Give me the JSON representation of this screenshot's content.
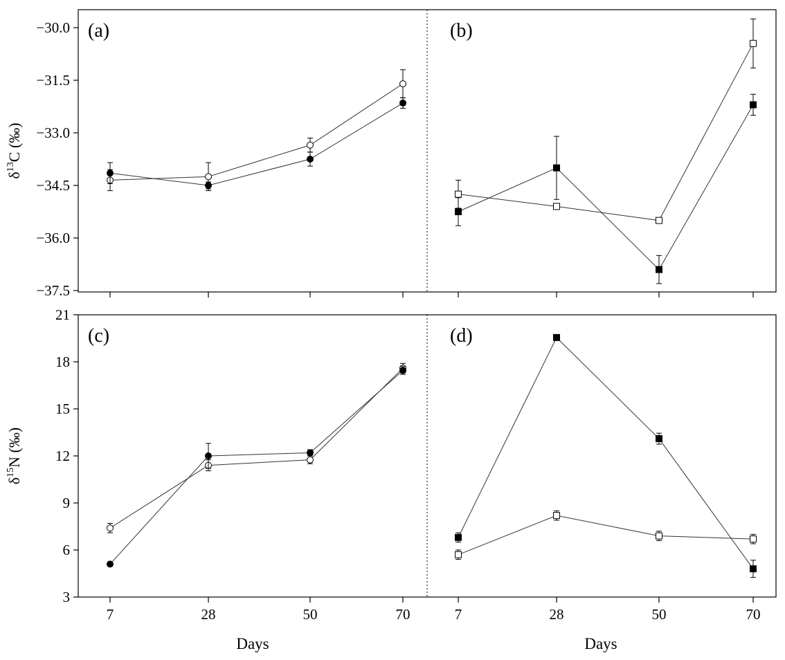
{
  "figure": {
    "x_axis_label": "Days",
    "x_ticks": [
      7,
      28,
      50,
      70
    ]
  },
  "chart_data": [
    {
      "type": "line",
      "panel_label": "(a)",
      "ylabel_main": "δ",
      "ylabel_sup": "13",
      "ylabel_rest": "C (‰)",
      "ylim": [
        -37.5,
        -29.5
      ],
      "yticks": [
        -30.0,
        -31.5,
        -33.0,
        -34.5,
        -36.0,
        -37.5
      ],
      "ytick_labels": [
        "−30.0",
        "−31.5",
        "−33.0",
        "−34.5",
        "−36.0",
        "−37.5"
      ],
      "categories": [
        7,
        28,
        50,
        70
      ],
      "series": [
        {
          "name": "open circles",
          "marker": "circle",
          "fill": "open",
          "values": [
            -34.35,
            -34.25,
            -33.35,
            -31.6
          ],
          "errors": [
            0.3,
            0.4,
            0.2,
            0.4
          ]
        },
        {
          "name": "filled circles",
          "marker": "circle",
          "fill": "filled",
          "values": [
            -34.15,
            -34.5,
            -33.75,
            -32.15
          ],
          "errors": [
            0.3,
            0.1,
            0.2,
            0.15
          ]
        }
      ]
    },
    {
      "type": "line",
      "panel_label": "(b)",
      "ylim": [
        -37.5,
        -29.5
      ],
      "yticks": [
        -30.0,
        -31.5,
        -33.0,
        -34.5,
        -36.0,
        -37.5
      ],
      "categories": [
        7,
        28,
        50,
        70
      ],
      "series": [
        {
          "name": "open squares",
          "marker": "square",
          "fill": "open",
          "values": [
            -34.75,
            -35.1,
            -35.5,
            -30.45
          ],
          "errors": [
            0.4,
            0.05,
            0.05,
            0.7
          ]
        },
        {
          "name": "filled squares",
          "marker": "square",
          "fill": "filled",
          "values": [
            -35.25,
            -34.0,
            -36.9,
            -32.2
          ],
          "errors": [
            0.4,
            0.9,
            0.4,
            0.3
          ]
        }
      ]
    },
    {
      "type": "line",
      "panel_label": "(c)",
      "ylabel_main": "δ",
      "ylabel_sup": "15",
      "ylabel_rest": "N (‰)",
      "ylim": [
        3,
        21
      ],
      "yticks": [
        3,
        6,
        9,
        12,
        15,
        18,
        21
      ],
      "ytick_labels": [
        "3",
        "6",
        "9",
        "12",
        "15",
        "18",
        "21"
      ],
      "categories": [
        7,
        28,
        50,
        70
      ],
      "series": [
        {
          "name": "open circles",
          "marker": "circle",
          "fill": "open",
          "values": [
            7.4,
            11.4,
            11.75,
            17.6
          ],
          "errors": [
            0.3,
            0.35,
            0.25,
            0.3
          ]
        },
        {
          "name": "filled circles",
          "marker": "circle",
          "fill": "filled",
          "values": [
            5.1,
            12.0,
            12.2,
            17.45
          ],
          "errors": [
            0.1,
            0.8,
            0.2,
            0.25
          ]
        }
      ]
    },
    {
      "type": "line",
      "panel_label": "(d)",
      "ylim": [
        3,
        21
      ],
      "yticks": [
        3,
        6,
        9,
        12,
        15,
        18,
        21
      ],
      "categories": [
        7,
        28,
        50,
        70
      ],
      "series": [
        {
          "name": "open squares",
          "marker": "square",
          "fill": "open",
          "values": [
            5.7,
            8.2,
            6.9,
            6.7
          ],
          "errors": [
            0.3,
            0.3,
            0.3,
            0.3
          ]
        },
        {
          "name": "filled squares",
          "marker": "square",
          "fill": "filled",
          "values": [
            6.8,
            19.55,
            13.1,
            4.8
          ],
          "errors": [
            0.3,
            0.1,
            0.35,
            0.55
          ]
        }
      ]
    }
  ]
}
